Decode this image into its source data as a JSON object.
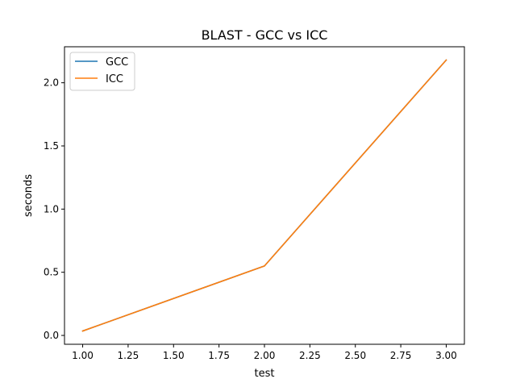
{
  "chart_data": {
    "type": "line",
    "title": "BLAST - GCC vs ICC",
    "xlabel": "test",
    "ylabel": "seconds",
    "xlim": [
      0.9,
      3.1
    ],
    "ylim": [
      -0.07,
      2.285
    ],
    "xticks": [
      1.0,
      1.25,
      1.5,
      1.75,
      2.0,
      2.25,
      2.5,
      2.75,
      3.0
    ],
    "xtick_labels": [
      "1.00",
      "1.25",
      "1.50",
      "1.75",
      "2.00",
      "2.25",
      "2.50",
      "2.75",
      "3.00"
    ],
    "yticks": [
      0.0,
      0.5,
      1.0,
      1.5,
      2.0
    ],
    "ytick_labels": [
      "0.0",
      "0.5",
      "1.0",
      "1.5",
      "2.0"
    ],
    "grid": false,
    "legend_position": "top-left",
    "x": [
      1,
      2,
      3
    ],
    "series": [
      {
        "name": "GCC",
        "color": "#1f77b4",
        "values": [
          0.035,
          0.55,
          2.18
        ]
      },
      {
        "name": "ICC",
        "color": "#ff7f0e",
        "values": [
          0.035,
          0.55,
          2.18
        ]
      }
    ]
  }
}
